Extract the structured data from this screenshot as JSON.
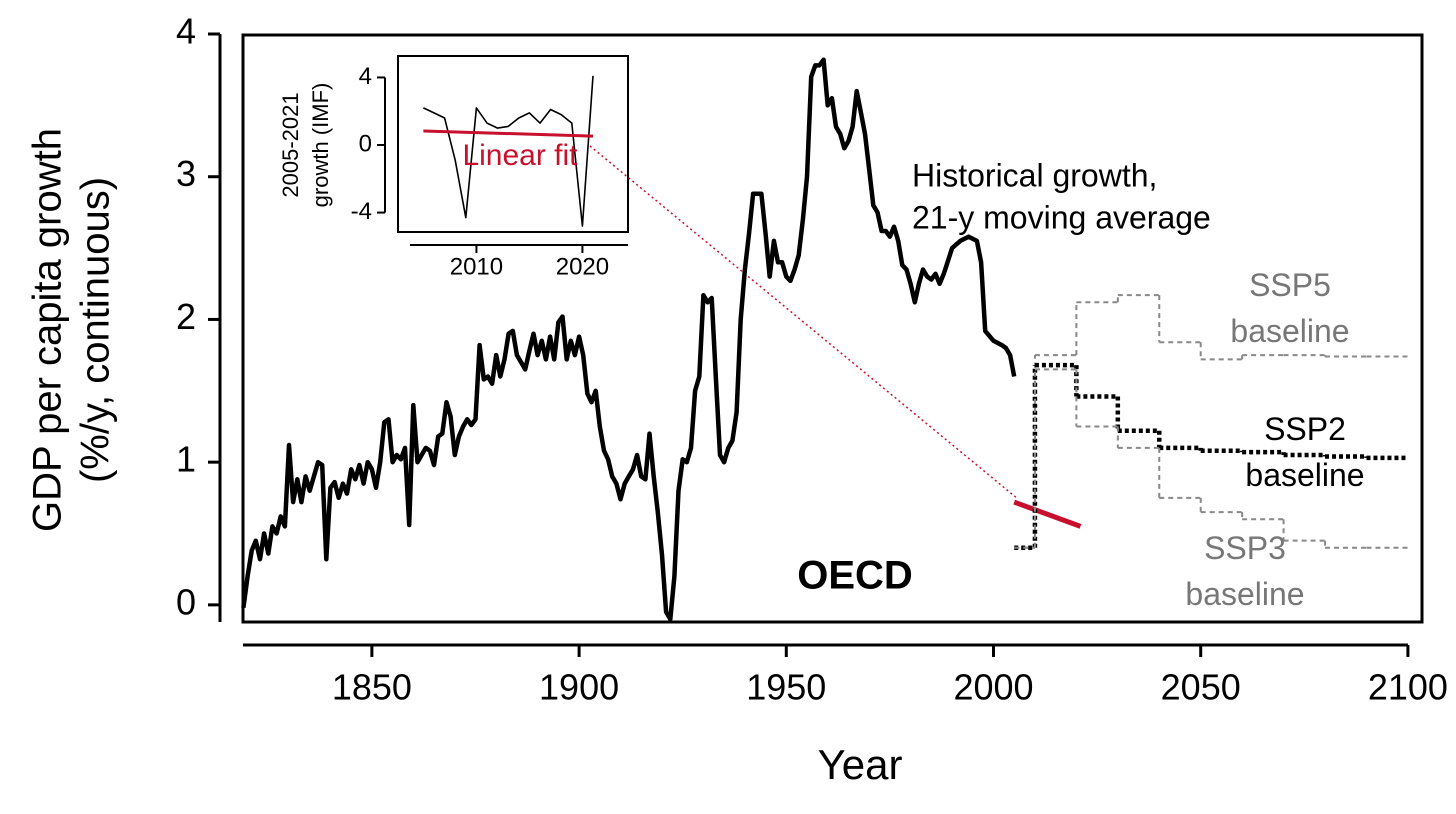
{
  "chart_data": [
    {
      "type": "line",
      "title": "OECD",
      "xlabel": "Year",
      "ylabel": [
        "GDP per capita growth",
        "(%/y, continuous)"
      ],
      "annotation": [
        "Historical growth,",
        "21-y moving average"
      ],
      "xlim": [
        1818.9,
        2103.4
      ],
      "ylim": [
        -0.12,
        4.0
      ],
      "xticks": [
        1850,
        1900,
        1950,
        2000,
        2050,
        2100
      ],
      "yticks": [
        0,
        1,
        2,
        3,
        4
      ],
      "series": [
        {
          "color": "#000000",
          "x": [
            1819,
            1820,
            1821,
            1822,
            1823,
            1824,
            1825,
            1826,
            1827,
            1828,
            1829,
            1830,
            1831,
            1832,
            1833,
            1834,
            1835,
            1836,
            1837,
            1838,
            1839,
            1840,
            1841,
            1842,
            1843,
            1844,
            1845,
            1846,
            1847,
            1848,
            1849,
            1850,
            1851,
            1852,
            1853,
            1854,
            1855,
            1856,
            1857,
            1858,
            1859,
            1860,
            1861,
            1862,
            1863,
            1864,
            1865,
            1866,
            1867,
            1868,
            1869,
            1870,
            1871,
            1872,
            1873,
            1874,
            1875,
            1876,
            1877,
            1878,
            1879,
            1880,
            1881,
            1882,
            1883,
            1884,
            1885,
            1886,
            1887,
            1888,
            1889,
            1890,
            1891,
            1892,
            1893,
            1894,
            1895,
            1896,
            1897,
            1898,
            1899,
            1900,
            1901,
            1902,
            1903,
            1904,
            1905,
            1906,
            1907,
            1908,
            1909,
            1910,
            1911,
            1912,
            1913,
            1914,
            1915,
            1916,
            1917,
            1918,
            1919,
            1920,
            1921,
            1922,
            1923,
            1924,
            1925,
            1926,
            1927,
            1928,
            1929,
            1930,
            1931,
            1932,
            1933,
            1934,
            1935,
            1936,
            1937,
            1938,
            1939,
            1940,
            1941,
            1942,
            1943,
            1944,
            1945,
            1946,
            1947,
            1948,
            1949,
            1950,
            1951,
            1952,
            1953,
            1954,
            1955,
            1956,
            1957,
            1958,
            1959,
            1960,
            1961,
            1962,
            1963,
            1964,
            1965,
            1966,
            1967,
            1968,
            1969,
            1970,
            1971,
            1972,
            1973,
            1974,
            1975,
            1976,
            1977,
            1978,
            1979,
            1980,
            1981,
            1982,
            1983,
            1984,
            1985,
            1986,
            1987,
            1988,
            1990,
            1992,
            1994,
            1996,
            1997,
            1998,
            2000,
            2002,
            2003,
            2004,
            2005
          ],
          "values": [
            -0.02,
            0.2,
            0.38,
            0.45,
            0.32,
            0.5,
            0.36,
            0.55,
            0.5,
            0.62,
            0.55,
            1.12,
            0.72,
            0.88,
            0.72,
            0.9,
            0.8,
            0.9,
            1.0,
            0.98,
            0.32,
            0.82,
            0.86,
            0.75,
            0.85,
            0.78,
            0.95,
            0.88,
            0.98,
            0.85,
            1.0,
            0.95,
            0.82,
            1.0,
            1.28,
            1.3,
            1.0,
            1.05,
            1.02,
            1.1,
            0.56,
            1.4,
            1.0,
            1.05,
            1.1,
            1.08,
            0.98,
            1.18,
            1.2,
            1.42,
            1.32,
            1.05,
            1.18,
            1.25,
            1.3,
            1.26,
            1.3,
            1.82,
            1.58,
            1.6,
            1.55,
            1.75,
            1.6,
            1.72,
            1.9,
            1.92,
            1.75,
            1.7,
            1.65,
            1.78,
            1.9,
            1.75,
            1.85,
            1.72,
            1.88,
            1.72,
            1.98,
            2.02,
            1.72,
            1.85,
            1.75,
            1.88,
            1.75,
            1.48,
            1.42,
            1.5,
            1.25,
            1.08,
            1.02,
            0.9,
            0.85,
            0.74,
            0.85,
            0.9,
            0.95,
            1.05,
            0.9,
            0.88,
            1.2,
            0.9,
            0.65,
            0.35,
            -0.05,
            -0.1,
            0.2,
            0.8,
            1.02,
            1.0,
            1.1,
            1.5,
            1.6,
            2.17,
            2.12,
            2.15,
            1.6,
            1.05,
            1.0,
            1.1,
            1.15,
            1.35,
            2.0,
            2.35,
            2.6,
            2.88,
            2.88,
            2.88,
            2.6,
            2.3,
            2.55,
            2.4,
            2.4,
            2.3,
            2.27,
            2.35,
            2.45,
            2.7,
            3.0,
            3.7,
            3.78,
            3.78,
            3.82,
            3.5,
            3.55,
            3.35,
            3.3,
            3.2,
            3.25,
            3.35,
            3.6,
            3.45,
            3.3,
            3.05,
            2.8,
            2.75,
            2.62,
            2.62,
            2.58,
            2.65,
            2.55,
            2.38,
            2.35,
            2.25,
            2.12,
            2.25,
            2.35,
            2.3,
            2.28,
            2.32,
            2.25,
            2.32,
            2.5,
            2.55,
            2.58,
            2.55,
            2.4,
            1.92,
            1.85,
            1.82,
            1.8,
            1.75,
            1.6
          ]
        },
        {
          "color": "#c8102e",
          "x": [
            2005,
            2021
          ],
          "values": [
            0.72,
            0.55
          ]
        },
        {
          "name": "SSP5 baseline",
          "color": "#888888",
          "dashed": true,
          "bins": [
            2005,
            2010,
            2020,
            2030,
            2040,
            2050,
            2060,
            2070,
            2080,
            2090,
            2100
          ],
          "values": [
            0.4,
            1.75,
            2.12,
            2.17,
            1.84,
            1.72,
            1.75,
            1.75,
            1.74,
            1.74
          ]
        },
        {
          "name": "SSP2 baseline",
          "color": "#000000",
          "dashed": true,
          "bins": [
            2005,
            2010,
            2020,
            2030,
            2040,
            2050,
            2060,
            2070,
            2080,
            2090,
            2100
          ],
          "values": [
            0.4,
            1.68,
            1.46,
            1.22,
            1.1,
            1.08,
            1.07,
            1.05,
            1.04,
            1.03
          ]
        },
        {
          "name": "SSP3 baseline",
          "color": "#888888",
          "dashed": true,
          "bins": [
            2005,
            2010,
            2020,
            2030,
            2040,
            2050,
            2060,
            2070,
            2080,
            2090,
            2100
          ],
          "values": [
            0.4,
            1.65,
            1.25,
            1.1,
            0.75,
            0.65,
            0.6,
            0.45,
            0.4,
            0.4
          ]
        }
      ]
    },
    {
      "type": "line",
      "ylabel": [
        "2005-2021",
        "growth (IMF)"
      ],
      "xlim": [
        2002.6,
        2024.3
      ],
      "ylim": [
        -5.15,
        5.27
      ],
      "xticks": [
        2010,
        2020
      ],
      "yticks": [
        -4,
        0,
        4
      ],
      "series": [
        {
          "color": "#000000",
          "x": [
            2005,
            2006,
            2007,
            2008,
            2009,
            2010,
            2011,
            2012,
            2013,
            2014,
            2015,
            2016,
            2017,
            2018,
            2019,
            2020,
            2021
          ],
          "values": [
            2.2,
            1.9,
            1.6,
            -0.9,
            -4.3,
            2.2,
            1.3,
            1.0,
            1.1,
            1.6,
            1.9,
            1.3,
            2.1,
            1.8,
            1.3,
            -4.8,
            4.1
          ]
        },
        {
          "name": "Linear fit",
          "color": "#c8102e",
          "x": [
            2005,
            2021
          ],
          "values": [
            0.83,
            0.53
          ]
        }
      ]
    }
  ]
}
